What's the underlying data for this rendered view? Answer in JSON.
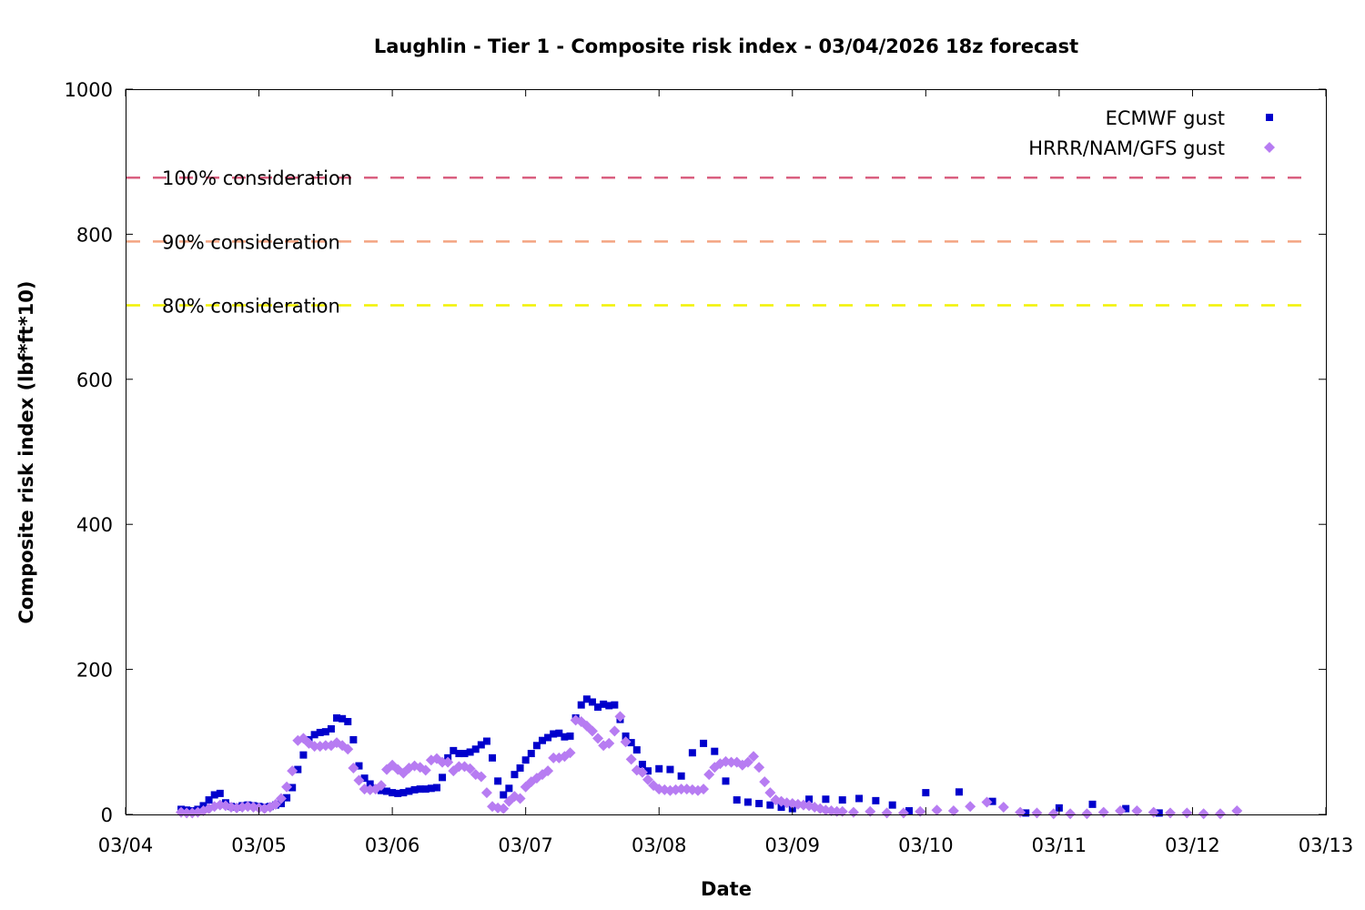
{
  "chart_data": {
    "type": "scatter",
    "title": "Laughlin - Tier 1 - Composite risk index - 03/04/2026 18z forecast",
    "xlabel": "Date",
    "ylabel": "Composite risk index (lbf*ft*10)",
    "x_domain": [
      "03/04",
      "03/13"
    ],
    "ylim": [
      0,
      1000
    ],
    "x_ticks": [
      "03/04",
      "03/05",
      "03/06",
      "03/07",
      "03/08",
      "03/09",
      "03/10",
      "03/11",
      "03/12",
      "03/13"
    ],
    "y_ticks": [
      "0",
      "200",
      "400",
      "600",
      "800",
      "1000"
    ],
    "grid": false,
    "legend_position": "top-right",
    "reference_lines": [
      {
        "label": "100% consideration",
        "y": 878,
        "color": "#d95f7f"
      },
      {
        "label": "90% consideration",
        "y": 790,
        "color": "#f4a582"
      },
      {
        "label": "80% consideration",
        "y": 702,
        "color": "#f2f200"
      }
    ],
    "series": [
      {
        "name": "ECMWF gust",
        "color": "#0000cc",
        "marker": "square",
        "points": [
          [
            "03/04 10:00",
            7
          ],
          [
            "03/04 11:00",
            6
          ],
          [
            "03/04 12:00",
            5
          ],
          [
            "03/04 13:00",
            7
          ],
          [
            "03/04 14:00",
            12
          ],
          [
            "03/04 15:00",
            20
          ],
          [
            "03/04 16:00",
            27
          ],
          [
            "03/04 17:00",
            29
          ],
          [
            "03/04 18:00",
            16
          ],
          [
            "03/04 19:00",
            11
          ],
          [
            "03/04 20:00",
            10
          ],
          [
            "03/04 21:00",
            12
          ],
          [
            "03/04 22:00",
            13
          ],
          [
            "03/04 23:00",
            12
          ],
          [
            "03/05 00:00",
            11
          ],
          [
            "03/05 01:00",
            10
          ],
          [
            "03/05 02:00",
            11
          ],
          [
            "03/05 03:00",
            13
          ],
          [
            "03/05 04:00",
            15
          ],
          [
            "03/05 05:00",
            23
          ],
          [
            "03/05 06:00",
            37
          ],
          [
            "03/05 07:00",
            62
          ],
          [
            "03/05 08:00",
            82
          ],
          [
            "03/05 09:00",
            103
          ],
          [
            "03/05 10:00",
            110
          ],
          [
            "03/05 11:00",
            113
          ],
          [
            "03/05 12:00",
            114
          ],
          [
            "03/05 13:00",
            118
          ],
          [
            "03/05 14:00",
            133
          ],
          [
            "03/05 15:00",
            132
          ],
          [
            "03/05 16:00",
            128
          ],
          [
            "03/05 17:00",
            103
          ],
          [
            "03/05 18:00",
            67
          ],
          [
            "03/05 19:00",
            50
          ],
          [
            "03/05 20:00",
            42
          ],
          [
            "03/05 21:00",
            36
          ],
          [
            "03/05 22:00",
            33
          ],
          [
            "03/05 23:00",
            32
          ],
          [
            "03/06 00:00",
            30
          ],
          [
            "03/06 01:00",
            29
          ],
          [
            "03/06 02:00",
            30
          ],
          [
            "03/06 03:00",
            32
          ],
          [
            "03/06 04:00",
            34
          ],
          [
            "03/06 05:00",
            35
          ],
          [
            "03/06 06:00",
            35
          ],
          [
            "03/06 07:00",
            36
          ],
          [
            "03/06 08:00",
            37
          ],
          [
            "03/06 09:00",
            51
          ],
          [
            "03/06 10:00",
            78
          ],
          [
            "03/06 11:00",
            88
          ],
          [
            "03/06 12:00",
            84
          ],
          [
            "03/06 13:00",
            84
          ],
          [
            "03/06 14:00",
            86
          ],
          [
            "03/06 15:00",
            90
          ],
          [
            "03/06 16:00",
            96
          ],
          [
            "03/06 17:00",
            101
          ],
          [
            "03/06 18:00",
            78
          ],
          [
            "03/06 19:00",
            46
          ],
          [
            "03/06 20:00",
            27
          ],
          [
            "03/06 21:00",
            36
          ],
          [
            "03/06 22:00",
            55
          ],
          [
            "03/06 23:00",
            64
          ],
          [
            "03/07 00:00",
            75
          ],
          [
            "03/07 01:00",
            84
          ],
          [
            "03/07 02:00",
            95
          ],
          [
            "03/07 03:00",
            102
          ],
          [
            "03/07 04:00",
            106
          ],
          [
            "03/07 05:00",
            111
          ],
          [
            "03/07 06:00",
            112
          ],
          [
            "03/07 07:00",
            107
          ],
          [
            "03/07 08:00",
            108
          ],
          [
            "03/07 09:00",
            133
          ],
          [
            "03/07 10:00",
            151
          ],
          [
            "03/07 11:00",
            159
          ],
          [
            "03/07 12:00",
            155
          ],
          [
            "03/07 13:00",
            148
          ],
          [
            "03/07 14:00",
            152
          ],
          [
            "03/07 15:00",
            150
          ],
          [
            "03/07 16:00",
            151
          ],
          [
            "03/07 17:00",
            131
          ],
          [
            "03/07 18:00",
            108
          ],
          [
            "03/07 19:00",
            99
          ],
          [
            "03/07 20:00",
            89
          ],
          [
            "03/07 21:00",
            69
          ],
          [
            "03/07 22:00",
            60
          ],
          [
            "03/08 00:00",
            63
          ],
          [
            "03/08 02:00",
            62
          ],
          [
            "03/08 04:00",
            53
          ],
          [
            "03/08 06:00",
            85
          ],
          [
            "03/08 08:00",
            98
          ],
          [
            "03/08 10:00",
            87
          ],
          [
            "03/08 12:00",
            46
          ],
          [
            "03/08 14:00",
            20
          ],
          [
            "03/08 16:00",
            17
          ],
          [
            "03/08 18:00",
            15
          ],
          [
            "03/08 20:00",
            13
          ],
          [
            "03/08 22:00",
            10
          ],
          [
            "03/09 00:00",
            8
          ],
          [
            "03/09 03:00",
            21
          ],
          [
            "03/09 06:00",
            21
          ],
          [
            "03/09 09:00",
            20
          ],
          [
            "03/09 12:00",
            22
          ],
          [
            "03/09 15:00",
            19
          ],
          [
            "03/09 18:00",
            13
          ],
          [
            "03/09 21:00",
            5
          ],
          [
            "03/10 00:00",
            30
          ],
          [
            "03/10 06:00",
            31
          ],
          [
            "03/10 12:00",
            18
          ],
          [
            "03/10 18:00",
            2
          ],
          [
            "03/11 00:00",
            9
          ],
          [
            "03/11 06:00",
            14
          ],
          [
            "03/11 12:00",
            8
          ],
          [
            "03/11 18:00",
            2
          ]
        ]
      },
      {
        "name": "HRRR/NAM/GFS gust",
        "color": "#b77cf2",
        "marker": "diamond",
        "points": [
          [
            "03/04 10:00",
            3
          ],
          [
            "03/04 11:00",
            2
          ],
          [
            "03/04 12:00",
            2
          ],
          [
            "03/04 13:00",
            3
          ],
          [
            "03/04 14:00",
            5
          ],
          [
            "03/04 15:00",
            8
          ],
          [
            "03/04 16:00",
            11
          ],
          [
            "03/04 17:00",
            13
          ],
          [
            "03/04 18:00",
            12
          ],
          [
            "03/04 19:00",
            10
          ],
          [
            "03/04 20:00",
            9
          ],
          [
            "03/04 21:00",
            10
          ],
          [
            "03/04 22:00",
            11
          ],
          [
            "03/04 23:00",
            10
          ],
          [
            "03/05 00:00",
            9
          ],
          [
            "03/05 01:00",
            8
          ],
          [
            "03/05 02:00",
            10
          ],
          [
            "03/05 03:00",
            14
          ],
          [
            "03/05 04:00",
            22
          ],
          [
            "03/05 05:00",
            38
          ],
          [
            "03/05 06:00",
            60
          ],
          [
            "03/05 07:00",
            102
          ],
          [
            "03/05 08:00",
            105
          ],
          [
            "03/05 09:00",
            98
          ],
          [
            "03/05 10:00",
            94
          ],
          [
            "03/05 11:00",
            94
          ],
          [
            "03/05 12:00",
            95
          ],
          [
            "03/05 13:00",
            95
          ],
          [
            "03/05 14:00",
            99
          ],
          [
            "03/05 15:00",
            95
          ],
          [
            "03/05 16:00",
            90
          ],
          [
            "03/05 17:00",
            64
          ],
          [
            "03/05 18:00",
            47
          ],
          [
            "03/05 19:00",
            35
          ],
          [
            "03/05 20:00",
            34
          ],
          [
            "03/05 21:00",
            35
          ],
          [
            "03/05 22:00",
            40
          ],
          [
            "03/05 23:00",
            62
          ],
          [
            "03/06 00:00",
            68
          ],
          [
            "03/06 01:00",
            62
          ],
          [
            "03/06 02:00",
            57
          ],
          [
            "03/06 03:00",
            64
          ],
          [
            "03/06 04:00",
            67
          ],
          [
            "03/06 05:00",
            65
          ],
          [
            "03/06 06:00",
            61
          ],
          [
            "03/06 07:00",
            75
          ],
          [
            "03/06 08:00",
            77
          ],
          [
            "03/06 09:00",
            72
          ],
          [
            "03/06 10:00",
            72
          ],
          [
            "03/06 11:00",
            60
          ],
          [
            "03/06 12:00",
            66
          ],
          [
            "03/06 13:00",
            66
          ],
          [
            "03/06 14:00",
            63
          ],
          [
            "03/06 15:00",
            55
          ],
          [
            "03/06 16:00",
            52
          ],
          [
            "03/06 17:00",
            30
          ],
          [
            "03/06 18:00",
            11
          ],
          [
            "03/06 19:00",
            9
          ],
          [
            "03/06 20:00",
            8
          ],
          [
            "03/06 21:00",
            18
          ],
          [
            "03/06 22:00",
            25
          ],
          [
            "03/06 23:00",
            22
          ],
          [
            "03/07 00:00",
            38
          ],
          [
            "03/07 01:00",
            45
          ],
          [
            "03/07 02:00",
            50
          ],
          [
            "03/07 03:00",
            55
          ],
          [
            "03/07 04:00",
            60
          ],
          [
            "03/07 05:00",
            78
          ],
          [
            "03/07 06:00",
            78
          ],
          [
            "03/07 07:00",
            80
          ],
          [
            "03/07 08:00",
            85
          ],
          [
            "03/07 09:00",
            130
          ],
          [
            "03/07 10:00",
            128
          ],
          [
            "03/07 11:00",
            122
          ],
          [
            "03/07 12:00",
            115
          ],
          [
            "03/07 13:00",
            105
          ],
          [
            "03/07 14:00",
            95
          ],
          [
            "03/07 15:00",
            98
          ],
          [
            "03/07 16:00",
            115
          ],
          [
            "03/07 17:00",
            135
          ],
          [
            "03/07 18:00",
            100
          ],
          [
            "03/07 19:00",
            76
          ],
          [
            "03/07 20:00",
            61
          ],
          [
            "03/07 21:00",
            58
          ],
          [
            "03/07 22:00",
            48
          ],
          [
            "03/07 23:00",
            40
          ],
          [
            "03/08 00:00",
            35
          ],
          [
            "03/08 01:00",
            34
          ],
          [
            "03/08 02:00",
            33
          ],
          [
            "03/08 03:00",
            34
          ],
          [
            "03/08 04:00",
            35
          ],
          [
            "03/08 05:00",
            35
          ],
          [
            "03/08 06:00",
            34
          ],
          [
            "03/08 07:00",
            33
          ],
          [
            "03/08 08:00",
            35
          ],
          [
            "03/08 09:00",
            55
          ],
          [
            "03/08 10:00",
            65
          ],
          [
            "03/08 11:00",
            70
          ],
          [
            "03/08 12:00",
            73
          ],
          [
            "03/08 13:00",
            72
          ],
          [
            "03/08 14:00",
            72
          ],
          [
            "03/08 15:00",
            68
          ],
          [
            "03/08 16:00",
            72
          ],
          [
            "03/08 17:00",
            80
          ],
          [
            "03/08 18:00",
            65
          ],
          [
            "03/08 19:00",
            45
          ],
          [
            "03/08 20:00",
            30
          ],
          [
            "03/08 21:00",
            20
          ],
          [
            "03/08 22:00",
            18
          ],
          [
            "03/08 23:00",
            16
          ],
          [
            "03/09 00:00",
            15
          ],
          [
            "03/09 01:00",
            14
          ],
          [
            "03/09 02:00",
            13
          ],
          [
            "03/09 03:00",
            12
          ],
          [
            "03/09 04:00",
            10
          ],
          [
            "03/09 05:00",
            8
          ],
          [
            "03/09 06:00",
            6
          ],
          [
            "03/09 07:00",
            5
          ],
          [
            "03/09 08:00",
            4
          ],
          [
            "03/09 09:00",
            4
          ],
          [
            "03/09 11:00",
            3
          ],
          [
            "03/09 14:00",
            4
          ],
          [
            "03/09 17:00",
            2
          ],
          [
            "03/09 20:00",
            2
          ],
          [
            "03/09 23:00",
            4
          ],
          [
            "03/10 02:00",
            6
          ],
          [
            "03/10 05:00",
            5
          ],
          [
            "03/10 08:00",
            11
          ],
          [
            "03/10 11:00",
            17
          ],
          [
            "03/10 14:00",
            10
          ],
          [
            "03/10 17:00",
            3
          ],
          [
            "03/10 20:00",
            2
          ],
          [
            "03/10 23:00",
            1
          ],
          [
            "03/11 02:00",
            1
          ],
          [
            "03/11 05:00",
            1
          ],
          [
            "03/11 08:00",
            3
          ],
          [
            "03/11 11:00",
            5
          ],
          [
            "03/11 14:00",
            5
          ],
          [
            "03/11 17:00",
            3
          ],
          [
            "03/11 20:00",
            2
          ],
          [
            "03/11 23:00",
            2
          ],
          [
            "03/12 02:00",
            1
          ],
          [
            "03/12 05:00",
            1
          ],
          [
            "03/12 08:00",
            5
          ]
        ]
      }
    ]
  }
}
